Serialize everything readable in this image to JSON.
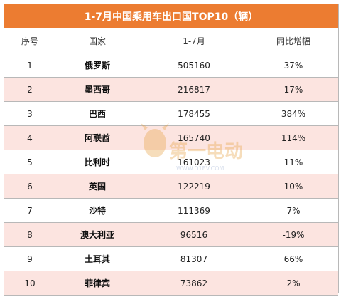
{
  "title": "1-7月中国乘用车出口国TOP10（辆）",
  "headers": [
    "序号",
    "国家",
    "1-7月",
    "同比增幅"
  ],
  "rows": [
    {
      "rank": "1",
      "country": "俄罗斯",
      "volume": "505160",
      "growth": "37%"
    },
    {
      "rank": "2",
      "country": "墨西哥",
      "volume": "216817",
      "growth": "17%"
    },
    {
      "rank": "3",
      "country": "巴西",
      "volume": "178455",
      "growth": "384%"
    },
    {
      "rank": "4",
      "country": "阿联酋",
      "volume": "165740",
      "growth": "114%"
    },
    {
      "rank": "5",
      "country": "比利时",
      "volume": "161023",
      "growth": "11%"
    },
    {
      "rank": "6",
      "country": "英国",
      "volume": "122219",
      "growth": "10%"
    },
    {
      "rank": "7",
      "country": "沙特",
      "volume": "111369",
      "growth": "7%"
    },
    {
      "rank": "8",
      "country": "澳大利亚",
      "volume": "96516",
      "growth": "-19%"
    },
    {
      "rank": "9",
      "country": "土耳其",
      "volume": "81307",
      "growth": "66%"
    },
    {
      "rank": "10",
      "country": "菲律宾",
      "volume": "73862",
      "growth": "2%"
    }
  ],
  "watermark": {
    "text": "第一电动",
    "url": "WWW.D1EV.COM"
  },
  "colors": {
    "header_bg": "#ec7c31",
    "stripe": "#fce4e0",
    "border": "#b8b8b8"
  }
}
